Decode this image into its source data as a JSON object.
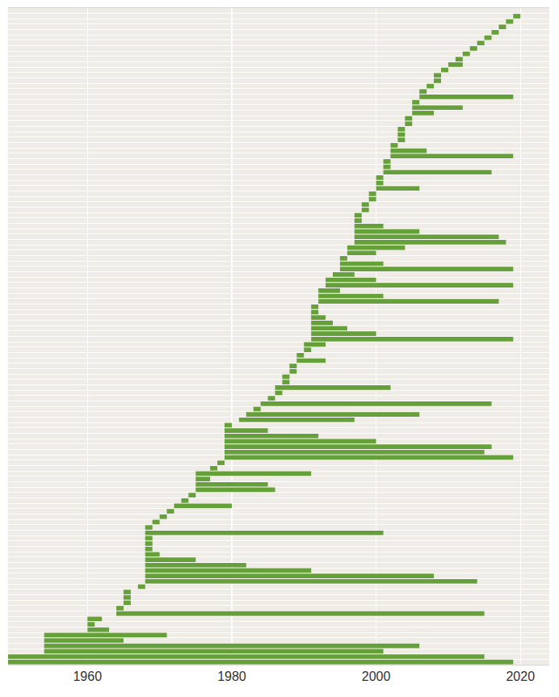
{
  "chart_data": {
    "type": "bar",
    "orientation": "horizontal",
    "color": "#66a03a",
    "grid": true,
    "tick_labels": "x",
    "xlim": [
      1949,
      2024
    ],
    "xticks": [
      1960,
      1980,
      2000,
      2020
    ],
    "categories": [
      null,
      null,
      null,
      null,
      null,
      null,
      null,
      null,
      null,
      null,
      null,
      null,
      null,
      null,
      null,
      null,
      null,
      null,
      null,
      null,
      null,
      null,
      null,
      null,
      null,
      null,
      null,
      null,
      null,
      null,
      null,
      null,
      null,
      null,
      null,
      null,
      null,
      null,
      null,
      null,
      null,
      null,
      null,
      null,
      null,
      null,
      null,
      null,
      null,
      null,
      null,
      null,
      null,
      null,
      null,
      null,
      null,
      null,
      null,
      null,
      null,
      null,
      null,
      null,
      null,
      null,
      null,
      null,
      null,
      null,
      null,
      null,
      null,
      null,
      null,
      null,
      null,
      null,
      null,
      null,
      null,
      null,
      null,
      null,
      null,
      null,
      null,
      null,
      null,
      null,
      null,
      null,
      null,
      null,
      null,
      null,
      null,
      null,
      null,
      null,
      null,
      null,
      null,
      null,
      null,
      null,
      null,
      null,
      null,
      null,
      null,
      null,
      null,
      null,
      null,
      null,
      null,
      null,
      null,
      null,
      null,
      null
    ],
    "start": [
      1949,
      1949,
      1954,
      1954,
      1954,
      1954,
      1960,
      1960,
      1960,
      1964,
      1964,
      1965,
      1965,
      1965,
      1967,
      1968,
      1968,
      1968,
      1968,
      1968,
      1968,
      1968,
      1968,
      1968,
      1968,
      1968,
      1969,
      1970,
      1971,
      1972,
      1973,
      1974,
      1975,
      1975,
      1975,
      1975,
      1977,
      1978,
      1979,
      1979,
      1979,
      1979,
      1979,
      1979,
      1979,
      1981,
      1982,
      1983,
      1984,
      1985,
      1986,
      1986,
      1987,
      1987,
      1988,
      1988,
      1989,
      1989,
      1990,
      1990,
      1991,
      1991,
      1991,
      1991,
      1991,
      1991,
      1991,
      1992,
      1992,
      1992,
      1993,
      1993,
      1994,
      1995,
      1995,
      1995,
      1996,
      1996,
      1997,
      1997,
      1997,
      1997,
      1997,
      1997,
      1998,
      1998,
      1999,
      1999,
      2000,
      2000,
      2000,
      2001,
      2001,
      2001,
      2002,
      2002,
      2002,
      2003,
      2003,
      2003,
      2004,
      2004,
      2005,
      2005,
      2005,
      2006,
      2006,
      2007,
      2008,
      2008,
      2009,
      2010,
      2011,
      2012,
      2013,
      2014,
      2015,
      2016,
      2017,
      2018,
      2019
    ],
    "end": [
      2019,
      2015,
      2001,
      2006,
      1965,
      1971,
      1963,
      1961,
      1962,
      2015,
      1965,
      1966,
      1966,
      1966,
      1968,
      2014,
      2008,
      1991,
      1982,
      1975,
      1970,
      1969,
      1969,
      1969,
      2001,
      1969,
      1970,
      1971,
      1972,
      1980,
      1974,
      1975,
      1986,
      1985,
      1977,
      1991,
      1978,
      1979,
      2019,
      2015,
      2016,
      2000,
      1992,
      1985,
      1980,
      1997,
      2006,
      1984,
      2016,
      1986,
      1987,
      2002,
      1988,
      1988,
      1989,
      1989,
      1993,
      1990,
      1991,
      1993,
      2019,
      2000,
      1996,
      1994,
      1993,
      1992,
      1992,
      2017,
      2001,
      1995,
      2019,
      2000,
      1997,
      2019,
      2001,
      1996,
      2000,
      2004,
      2018,
      2017,
      2006,
      2001,
      1998,
      1998,
      1999,
      1999,
      2000,
      2000,
      2006,
      2001,
      2001,
      2016,
      2002,
      2002,
      2019,
      2007,
      2003,
      2004,
      2004,
      2004,
      2005,
      2005,
      2008,
      2012,
      2006,
      2019,
      2007,
      2008,
      2009,
      2009,
      2010,
      2012,
      2012,
      2013,
      2014,
      2015,
      2016,
      2017,
      2018,
      2019,
      2020
    ]
  }
}
